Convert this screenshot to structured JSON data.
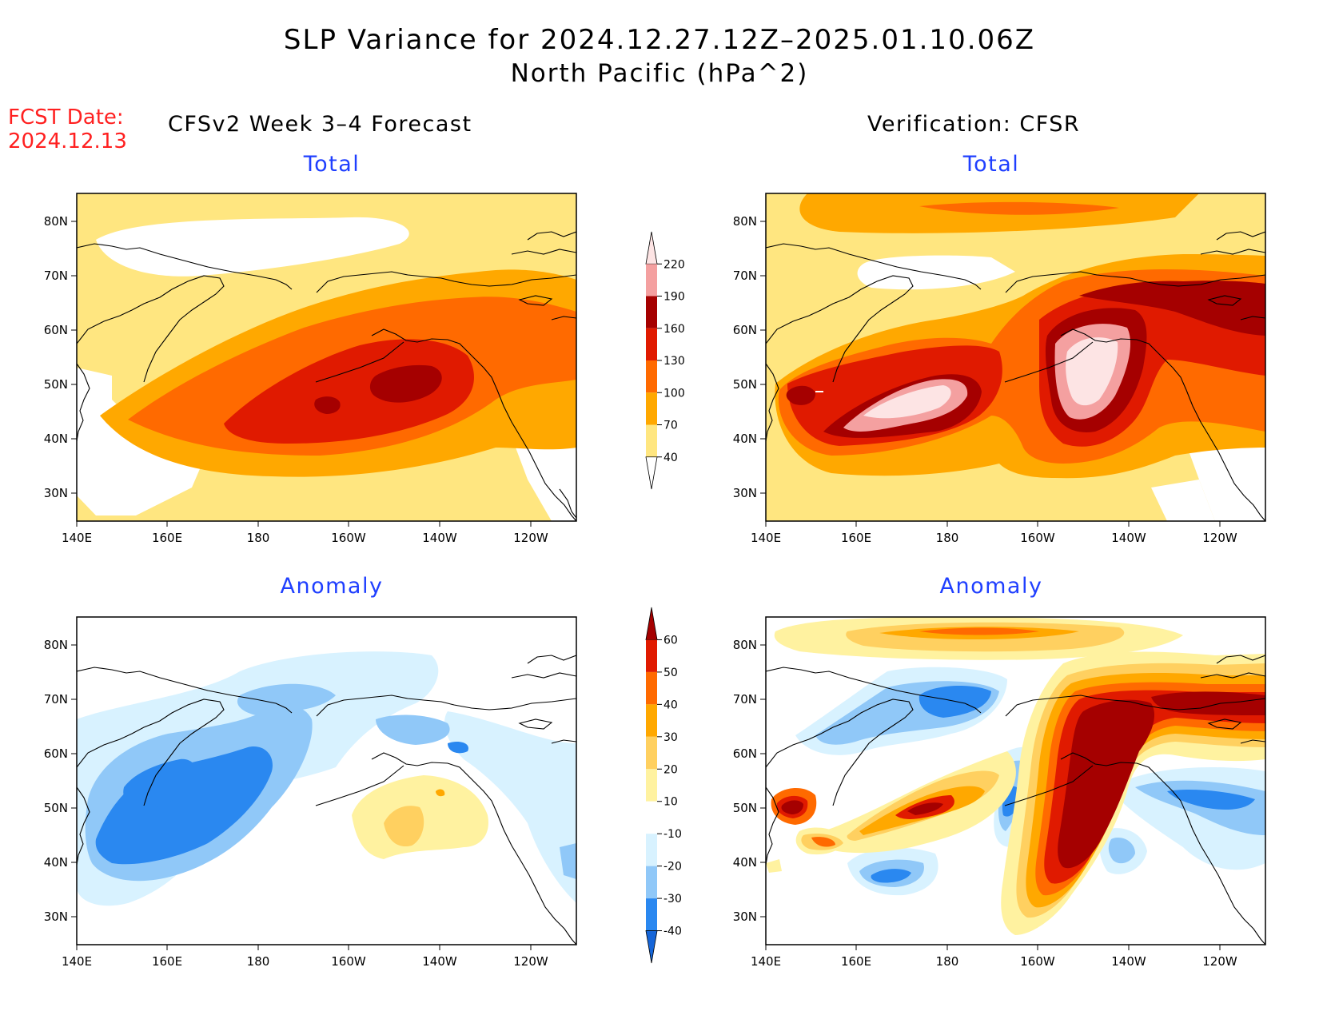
{
  "title": "SLP Variance for 2024.12.27.12Z–2025.01.10.06Z",
  "subtitle": "North Pacific (hPa^2)",
  "forecast_date": {
    "label": "FCST Date:",
    "value": "2024.12.13"
  },
  "left_column_title": "CFSv2 Week 3–4 Forecast",
  "right_column_title": "Verification: CFSR",
  "panels": [
    {
      "id": "fcst-total",
      "title": "Total"
    },
    {
      "id": "verif-total",
      "title": "Total"
    },
    {
      "id": "fcst-anomaly",
      "title": "Anomaly"
    },
    {
      "id": "verif-anomaly",
      "title": "Anomaly"
    }
  ],
  "lat_labels": [
    "80N",
    "70N",
    "60N",
    "50N",
    "40N",
    "30N"
  ],
  "lon_labels": [
    "140E",
    "160E",
    "180",
    "160W",
    "140W",
    "120W"
  ],
  "colorbar_total": {
    "levels": [
      "40",
      "70",
      "100",
      "130",
      "160",
      "190",
      "220"
    ],
    "colors": [
      "#ffffff",
      "#ffe680",
      "#ffa800",
      "#ff6a00",
      "#e01a00",
      "#a50000",
      "#f4a0a0",
      "#fde4e4"
    ]
  },
  "colorbar_anomaly": {
    "levels": [
      "-40",
      "-30",
      "-20",
      "-10",
      "10",
      "20",
      "30",
      "40",
      "50",
      "60"
    ],
    "colors": [
      "#1565d8",
      "#2a88f0",
      "#90c8f8",
      "#d8f2ff",
      "#ffffff",
      "#fff2a0",
      "#ffd060",
      "#ffa800",
      "#ff6a00",
      "#e01a00",
      "#a50000"
    ]
  }
}
